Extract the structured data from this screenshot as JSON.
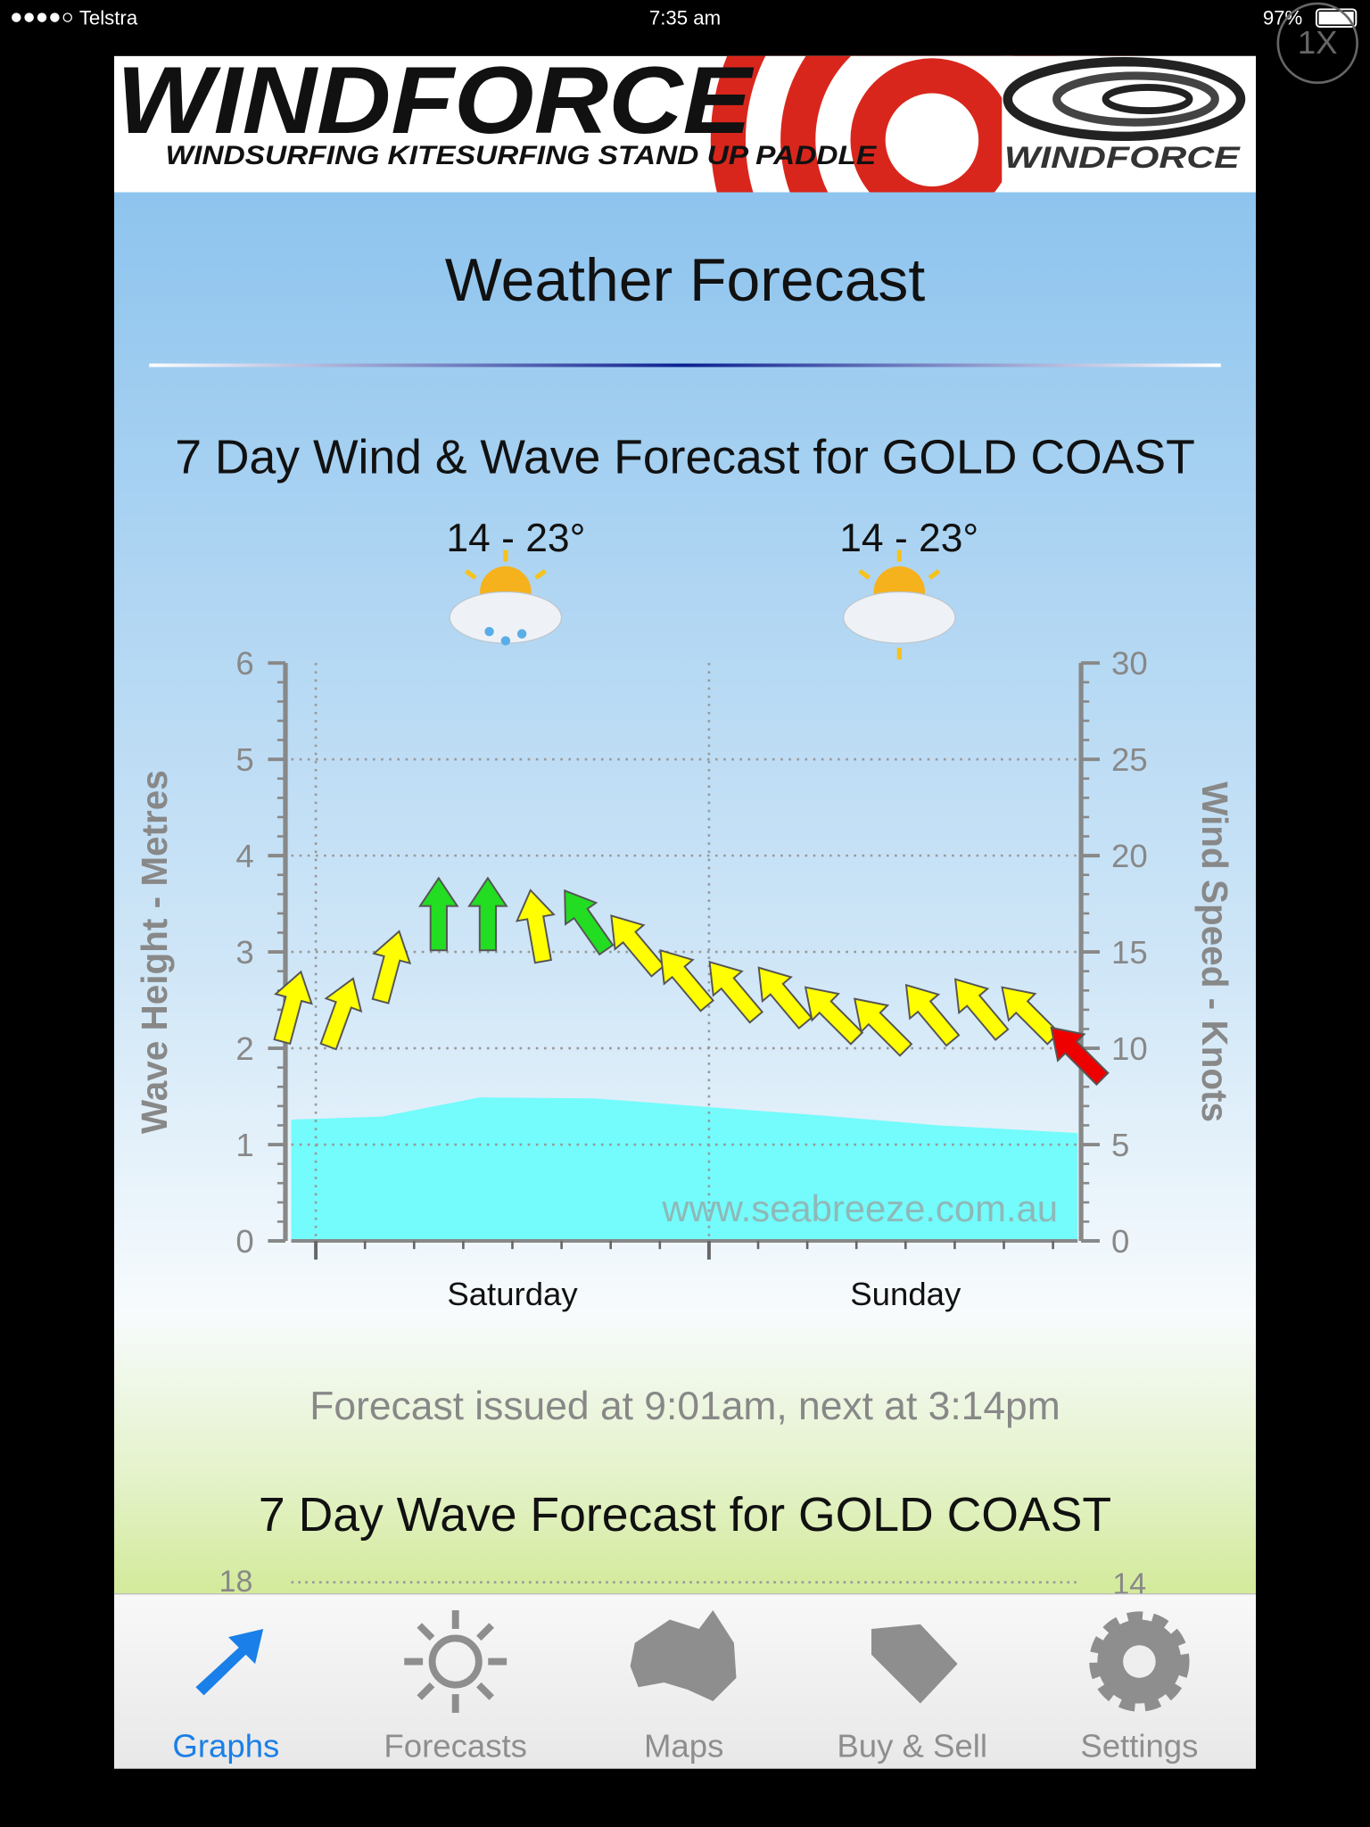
{
  "status_bar": {
    "carrier": "Telstra",
    "time": "7:35 am",
    "battery": "97%"
  },
  "zoom_button": "1X",
  "banner": {
    "brand": "WINDFORCE",
    "tagline": "WINDSURFING  KITESURFING STAND UP PADDLE",
    "logo_text": "WINDFORCE"
  },
  "page_title": "Weather Forecast",
  "chart_data": {
    "type": "combo",
    "title": "7 Day Wind & Wave Forecast for GOLD COAST",
    "ylabel": "Wave Height - Metres",
    "y2label": "Wind Speed - Knots",
    "ylim": [
      0,
      6
    ],
    "yticks": [
      0,
      1,
      2,
      3,
      4,
      5,
      6
    ],
    "y2lim": [
      0,
      30
    ],
    "y2ticks": [
      0,
      5,
      10,
      15,
      20,
      25,
      30
    ],
    "xlim": [
      -1.5,
      46.5
    ],
    "xticks": [
      {
        "value": 12,
        "label": "Saturday"
      },
      {
        "value": 36,
        "label": "Sunday"
      }
    ],
    "temperatures": [
      "14 - 23°",
      "14 - 23°"
    ],
    "grid": true,
    "watermark": "www.seabreeze.com.au",
    "series": [
      {
        "type": "area",
        "color": "#74fbfb",
        "x": [
          -1.5,
          4,
          10,
          17,
          24,
          31,
          38,
          46.5
        ],
        "values": [
          1.26,
          1.29,
          1.49,
          1.48,
          1.39,
          1.3,
          1.2,
          1.12
        ]
      },
      {
        "type": "arrow",
        "axis": "y2",
        "x": [
          -1.5,
          1.5,
          4.5,
          7.5,
          10.5,
          13.5,
          16.5,
          19.5,
          22.5,
          25.5,
          28.5,
          31.5,
          34.5,
          37.5,
          40.5,
          43.5,
          46.5
        ],
        "values": [
          12.1,
          11.8,
          14.2,
          16.9,
          16.9,
          16.3,
          16.6,
          15.4,
          13.6,
          13,
          12.7,
          11.8,
          11.2,
          11.8,
          12.1,
          11.8,
          9.7
        ],
        "directions": [
          15,
          20,
          15,
          0,
          0,
          -10,
          -35,
          -40,
          -40,
          -40,
          -40,
          -45,
          -45,
          -40,
          -40,
          -45,
          -45
        ],
        "colors": [
          "#ffff00",
          "#ffff00",
          "#ffff00",
          "#22dd22",
          "#22dd22",
          "#ffff00",
          "#22dd22",
          "#ffff00",
          "#ffff00",
          "#ffff00",
          "#ffff00",
          "#ffff00",
          "#ffff00",
          "#ffff00",
          "#ffff00",
          "#ffff00",
          "#ee0000"
        ]
      }
    ]
  },
  "forecast_note": "Forecast issued at 9:01am, next at 3:14pm",
  "next_chart": {
    "title": "7 Day Wave Forecast for GOLD COAST",
    "left_tick": 18,
    "right_tick": 14
  },
  "tabs": [
    "Graphs",
    "Forecasts",
    "Maps",
    "Buy & Sell",
    "Settings"
  ]
}
